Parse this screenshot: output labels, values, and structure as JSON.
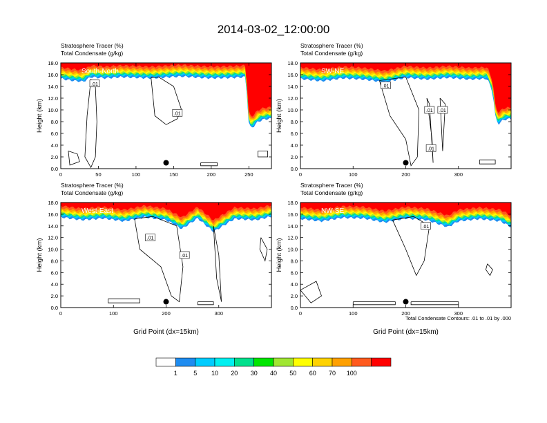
{
  "title": "2014-03-02_12:00:00",
  "footnote": "Total Condensate Contours: .01 to .01 by .000",
  "colorbar": {
    "colors": [
      "#ffffff",
      "#1e8cf0",
      "#00ccff",
      "#00f0f0",
      "#00e08c",
      "#00e600",
      "#a0e632",
      "#ffff00",
      "#ffd200",
      "#ffa000",
      "#ff5a1e",
      "#ff0000"
    ],
    "labels": [
      "1",
      "5",
      "10",
      "20",
      "30",
      "40",
      "50",
      "60",
      "70",
      "100"
    ]
  },
  "chart_data": [
    {
      "type": "heatmap",
      "label": "South-North",
      "subtitle_lines": [
        "Stratosphere Tracer   (%)",
        "Total Condensate   (g/kg)"
      ],
      "ylabel": "Height (km)",
      "xlabel": "",
      "xlim": [
        0,
        280
      ],
      "ylim": [
        0,
        18
      ],
      "xticks": [
        0,
        50,
        100,
        150,
        200,
        250
      ],
      "yticks": [
        "0.0",
        "2.0",
        "4.0",
        "6.0",
        "8.0",
        "10.0",
        "12.0",
        "14.0",
        "16.0",
        "18.0"
      ],
      "tracer_base": [
        [
          0,
          15.3
        ],
        [
          15,
          15.0
        ],
        [
          30,
          14.8
        ],
        [
          40,
          15.6
        ],
        [
          60,
          15.4
        ],
        [
          80,
          15.6
        ],
        [
          120,
          15.4
        ],
        [
          160,
          15.7
        ],
        [
          200,
          15.4
        ],
        [
          230,
          15.5
        ],
        [
          245,
          15.6
        ],
        [
          248,
          12.0
        ],
        [
          250,
          7.2
        ],
        [
          255,
          7.0
        ],
        [
          262,
          8.0
        ],
        [
          270,
          8.4
        ],
        [
          280,
          8.5
        ]
      ],
      "contour_labels": [
        {
          "x": 45,
          "y": 14.5,
          "text": ".01"
        },
        {
          "x": 155,
          "y": 9.5,
          "text": ".01"
        }
      ],
      "contour_lines": [
        [
          [
            40,
            15.2
          ],
          [
            35,
            9.0
          ],
          [
            32,
            2.0
          ],
          [
            40,
            0.2
          ],
          [
            46,
            2.0
          ],
          [
            48,
            8.0
          ],
          [
            46,
            14.0
          ],
          [
            40,
            15.2
          ]
        ],
        [
          [
            120,
            15.5
          ],
          [
            125,
            9.0
          ],
          [
            140,
            7.5
          ],
          [
            155,
            8.5
          ],
          [
            160,
            10.2
          ],
          [
            150,
            14.0
          ],
          [
            130,
            15.6
          ],
          [
            120,
            15.5
          ]
        ],
        [
          [
            186,
            1.0
          ],
          [
            208,
            1.0
          ],
          [
            208,
            0.5
          ],
          [
            186,
            0.5
          ],
          [
            186,
            1.0
          ]
        ],
        [
          [
            10,
            3.0
          ],
          [
            22,
            2.5
          ],
          [
            25,
            1.2
          ],
          [
            12,
            0.6
          ],
          [
            10,
            3.0
          ]
        ],
        [
          [
            262,
            3.0
          ],
          [
            275,
            3.0
          ],
          [
            275,
            2.0
          ],
          [
            262,
            2.0
          ],
          [
            262,
            3.0
          ]
        ]
      ],
      "dot": {
        "x": 140,
        "y": 1.0
      }
    },
    {
      "type": "heatmap",
      "label": "SW-NE",
      "subtitle_lines": [
        "Stratosphere Tracer   (%)",
        "Total Condensate   (g/kg)"
      ],
      "ylabel": "Height (km)",
      "xlabel": "",
      "xlim": [
        0,
        400
      ],
      "ylim": [
        0,
        18
      ],
      "xticks": [
        0,
        100,
        200,
        300
      ],
      "yticks": [
        "0.0",
        "2.0",
        "4.0",
        "6.0",
        "8.0",
        "10.0",
        "12.0",
        "14.0",
        "16.0",
        "18.0"
      ],
      "tracer_base": [
        [
          0,
          15.3
        ],
        [
          40,
          14.9
        ],
        [
          80,
          15.4
        ],
        [
          120,
          15.2
        ],
        [
          160,
          14.7
        ],
        [
          200,
          15.5
        ],
        [
          240,
          15.2
        ],
        [
          280,
          15.5
        ],
        [
          320,
          15.2
        ],
        [
          355,
          15.3
        ],
        [
          365,
          13.0
        ],
        [
          370,
          9.0
        ],
        [
          375,
          7.5
        ],
        [
          385,
          8.3
        ],
        [
          400,
          8.5
        ]
      ],
      "contour_labels": [
        {
          "x": 162,
          "y": 14.2,
          "text": ".01"
        },
        {
          "x": 245,
          "y": 10.0,
          "text": ".01"
        },
        {
          "x": 270,
          "y": 10.0,
          "text": ".01"
        },
        {
          "x": 248,
          "y": 3.5,
          "text": ".01"
        }
      ],
      "contour_lines": [
        [
          [
            150,
            15.0
          ],
          [
            170,
            9.0
          ],
          [
            200,
            5.0
          ],
          [
            210,
            0.5
          ],
          [
            222,
            2.0
          ],
          [
            225,
            10.0
          ],
          [
            200,
            15.6
          ],
          [
            150,
            15.0
          ]
        ],
        [
          [
            240,
            12.0
          ],
          [
            250,
            5.0
          ],
          [
            252,
            1.0
          ],
          [
            245,
            11.0
          ],
          [
            240,
            12.0
          ]
        ],
        [
          [
            265,
            12.0
          ],
          [
            270,
            3.0
          ],
          [
            275,
            11.0
          ],
          [
            265,
            12.0
          ]
        ],
        [
          [
            340,
            1.5
          ],
          [
            370,
            1.5
          ],
          [
            370,
            0.8
          ],
          [
            340,
            0.8
          ],
          [
            340,
            1.5
          ]
        ]
      ],
      "dot": {
        "x": 200,
        "y": 1.0
      }
    },
    {
      "type": "heatmap",
      "label": "West-East",
      "subtitle_lines": [
        "Stratosphere Tracer   (%)",
        "Total Condensate   (g/kg)"
      ],
      "ylabel": "Height (km)",
      "xlabel": "Grid Point (dx=15km)",
      "xlim": [
        0,
        400
      ],
      "ylim": [
        0,
        18
      ],
      "xticks": [
        0,
        100,
        200,
        300
      ],
      "yticks": [
        "0.0",
        "2.0",
        "4.0",
        "6.0",
        "8.0",
        "10.0",
        "12.0",
        "14.0",
        "16.0",
        "18.0"
      ],
      "tracer_base": [
        [
          0,
          15.5
        ],
        [
          40,
          15.0
        ],
        [
          80,
          15.3
        ],
        [
          120,
          14.8
        ],
        [
          160,
          15.5
        ],
        [
          200,
          15.0
        ],
        [
          230,
          13.5
        ],
        [
          260,
          15.3
        ],
        [
          290,
          13.0
        ],
        [
          330,
          15.2
        ],
        [
          370,
          15.0
        ],
        [
          400,
          15.6
        ]
      ],
      "contour_labels": [
        {
          "x": 170,
          "y": 12.0,
          "text": ".01"
        },
        {
          "x": 235,
          "y": 9.0,
          "text": ".01"
        }
      ],
      "contour_lines": [
        [
          [
            140,
            15.2
          ],
          [
            150,
            10.0
          ],
          [
            190,
            7.0
          ],
          [
            210,
            2.0
          ],
          [
            225,
            1.0
          ],
          [
            232,
            7.0
          ],
          [
            220,
            14.0
          ],
          [
            175,
            15.6
          ],
          [
            140,
            15.2
          ]
        ],
        [
          [
            290,
            14.0
          ],
          [
            300,
            9.0
          ],
          [
            305,
            1.0
          ],
          [
            296,
            5.0
          ],
          [
            290,
            14.0
          ]
        ],
        [
          [
            90,
            1.5
          ],
          [
            150,
            1.5
          ],
          [
            150,
            0.8
          ],
          [
            90,
            0.8
          ],
          [
            90,
            1.5
          ]
        ],
        [
          [
            260,
            1.0
          ],
          [
            290,
            1.0
          ],
          [
            290,
            0.5
          ],
          [
            260,
            0.5
          ],
          [
            260,
            1.0
          ]
        ],
        [
          [
            380,
            12.0
          ],
          [
            392,
            10.0
          ],
          [
            388,
            8.0
          ],
          [
            378,
            10.0
          ],
          [
            380,
            12.0
          ]
        ]
      ],
      "dot": {
        "x": 200,
        "y": 1.0
      }
    },
    {
      "type": "heatmap",
      "label": "NW-SE",
      "subtitle_lines": [
        "Stratosphere Tracer   (%)",
        "Total Condensate   (g/kg)"
      ],
      "ylabel": "Height (km)",
      "xlabel": "Grid Point (dx=15km)",
      "xlim": [
        0,
        400
      ],
      "ylim": [
        0,
        18
      ],
      "xticks": [
        0,
        100,
        200,
        300
      ],
      "yticks": [
        "0.0",
        "2.0",
        "4.0",
        "6.0",
        "8.0",
        "10.0",
        "12.0",
        "14.0",
        "16.0",
        "18.0"
      ],
      "tracer_base": [
        [
          0,
          15.2
        ],
        [
          40,
          14.8
        ],
        [
          80,
          15.4
        ],
        [
          120,
          15.3
        ],
        [
          160,
          14.6
        ],
        [
          200,
          15.3
        ],
        [
          240,
          15.0
        ],
        [
          280,
          13.8
        ],
        [
          300,
          14.8
        ],
        [
          340,
          15.2
        ],
        [
          380,
          14.8
        ],
        [
          400,
          13.8
        ]
      ],
      "contour_labels": [
        {
          "x": 238,
          "y": 14.0,
          "text": ".01"
        }
      ],
      "contour_lines": [
        [
          [
            175,
            15.0
          ],
          [
            200,
            10.0
          ],
          [
            220,
            5.5
          ],
          [
            235,
            8.0
          ],
          [
            245,
            14.0
          ],
          [
            215,
            15.6
          ],
          [
            175,
            15.0
          ]
        ],
        [
          [
            0,
            3.0
          ],
          [
            30,
            4.5
          ],
          [
            40,
            2.0
          ],
          [
            20,
            0.8
          ],
          [
            0,
            3.0
          ]
        ],
        [
          [
            100,
            1.0
          ],
          [
            180,
            1.0
          ],
          [
            180,
            0.5
          ],
          [
            100,
            0.5
          ],
          [
            100,
            1.0
          ]
        ],
        [
          [
            210,
            1.0
          ],
          [
            300,
            1.0
          ],
          [
            300,
            0.5
          ],
          [
            210,
            0.5
          ],
          [
            210,
            1.0
          ]
        ],
        [
          [
            355,
            7.5
          ],
          [
            365,
            6.5
          ],
          [
            360,
            5.5
          ],
          [
            352,
            6.5
          ],
          [
            355,
            7.5
          ]
        ]
      ],
      "dot": {
        "x": 200,
        "y": 1.0
      }
    }
  ]
}
